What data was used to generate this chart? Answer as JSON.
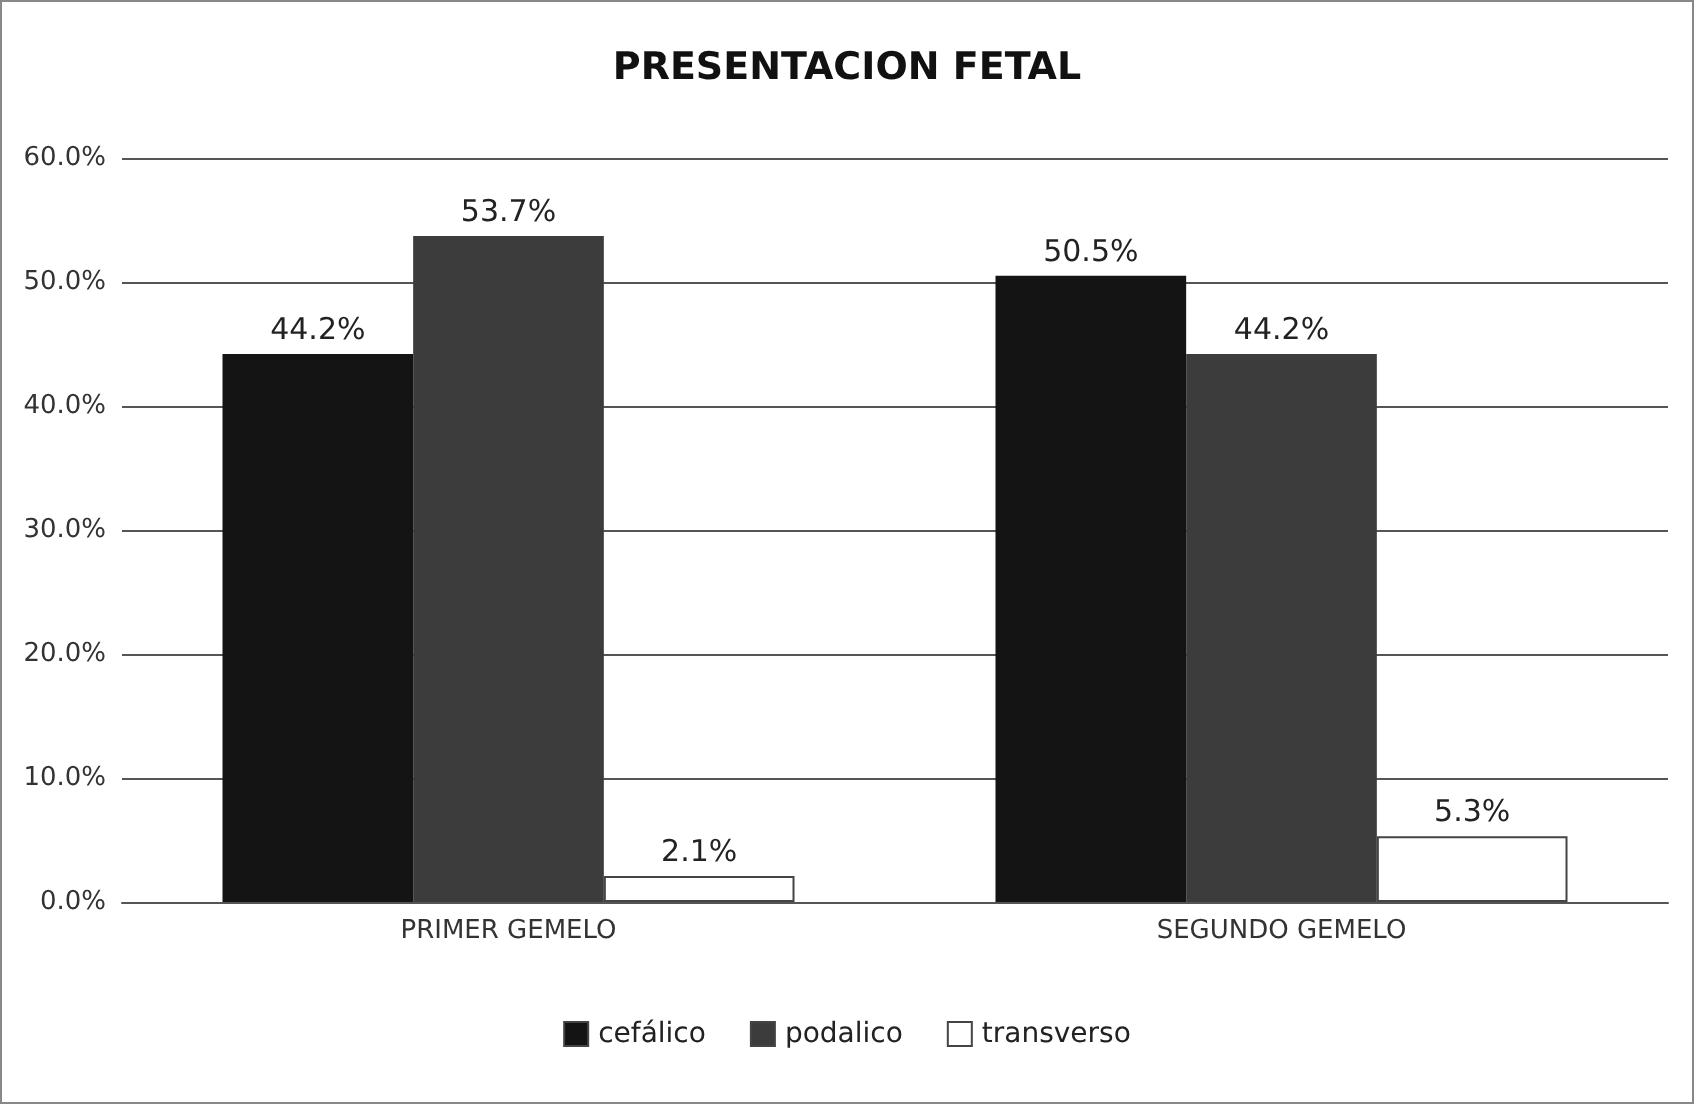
{
  "chart_data": {
    "type": "bar",
    "title": "PRESENTACION FETAL",
    "categories": [
      "PRIMER GEMELO",
      "SEGUNDO GEMELO"
    ],
    "series": [
      {
        "name": "cefálico",
        "color": "#141414",
        "values": [
          44.2,
          50.5
        ],
        "value_labels": [
          "44.2%",
          "50.5%"
        ]
      },
      {
        "name": "podalico",
        "color": "#3c3c3c",
        "values": [
          53.7,
          44.2
        ],
        "value_labels": [
          "53.7%",
          "44.2%"
        ]
      },
      {
        "name": "transverso",
        "color": "#ffffff",
        "values": [
          2.1,
          5.3
        ],
        "value_labels": [
          "2.1%",
          "5.3%"
        ]
      }
    ],
    "ylim": [
      0,
      60
    ],
    "yticks": [
      {
        "value": 0,
        "label": "0.0%"
      },
      {
        "value": 10,
        "label": "10.0%"
      },
      {
        "value": 20,
        "label": "20.0%"
      },
      {
        "value": 30,
        "label": "30.0%"
      },
      {
        "value": 40,
        "label": "40.0%"
      },
      {
        "value": 50,
        "label": "50.0%"
      },
      {
        "value": 60,
        "label": "60.0%"
      }
    ],
    "grid": "y",
    "legend": "bottom"
  }
}
